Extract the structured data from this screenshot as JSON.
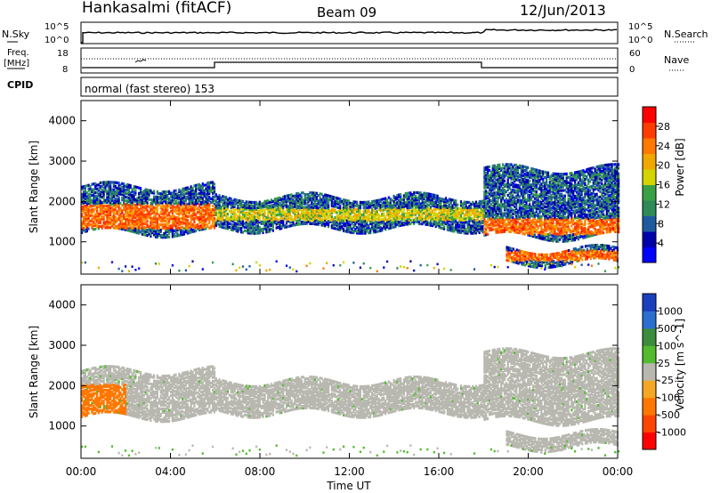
{
  "header": {
    "site": "Hankasalmi (fitACF)",
    "beam": "Beam 09",
    "date": "12/Jun/2013"
  },
  "noise_panel": {
    "left_label": "N.Sky",
    "right_label": "N.Search",
    "left_ticks": [
      "10^5",
      "10^0"
    ],
    "right_ticks": [
      "10^5",
      "10^0"
    ]
  },
  "freq_panel": {
    "left_label_line1": "Freq.",
    "left_label_line2": "[MHz]",
    "left_ticks": [
      "18",
      "8"
    ],
    "right_label": "Nave",
    "right_ticks": [
      "60",
      "0"
    ]
  },
  "cpid_panel": {
    "label": "CPID",
    "mode_text": "normal (fast stereo) 153"
  },
  "colors": {
    "power_scale": [
      "#0000ff",
      "#0000aa",
      "#1f5aa0",
      "#2e8b57",
      "#3aa046",
      "#d4d400",
      "#f0a800",
      "#ff7800",
      "#ff3c00",
      "#ff0000"
    ],
    "velocity_scale": [
      "#1a3fbf",
      "#2a6fd0",
      "#3c8c3c",
      "#52bb2e",
      "#b8b8b0",
      "#f5a623",
      "#ff7700",
      "#ff4400",
      "#ff0000"
    ],
    "ground_scatter": "#b8b8b0"
  },
  "chart_data": [
    {
      "type": "heatmap",
      "panel": "power",
      "ylabel": "Slant Range [km]",
      "yticks": [
        "1000",
        "2000",
        "3000",
        "4000"
      ],
      "ylim": [
        200,
        4500
      ],
      "colorbar_label": "Power [dB]",
      "colorbar_ticks": [
        "4",
        "8",
        "12",
        "16",
        "20",
        "24",
        "28"
      ],
      "colorbar_range": [
        0,
        32
      ],
      "bands": [
        {
          "t0": 0,
          "t1": 6,
          "range_lo": 1200,
          "range_hi": 2350,
          "core": [
            1300,
            1900
          ],
          "peak_db": 29
        },
        {
          "t0": 6,
          "t1": 18,
          "range_lo": 1300,
          "range_hi": 2100,
          "core": [
            1500,
            1800
          ],
          "peak_db": 22
        },
        {
          "t0": 18,
          "t1": 24,
          "range_lo": 1100,
          "range_hi": 2800,
          "core": [
            1150,
            1550
          ],
          "peak_db": 29
        },
        {
          "t0": 19,
          "t1": 24,
          "range_lo": 450,
          "range_hi": 800,
          "core": [
            500,
            750
          ],
          "peak_db": 29
        }
      ]
    },
    {
      "type": "heatmap",
      "panel": "velocity",
      "ylabel": "Slant Range [km]",
      "yticks": [
        "1000",
        "2000",
        "3000",
        "4000"
      ],
      "ylim": [
        200,
        4500
      ],
      "colorbar_label": "Velocity [m s^-1]",
      "colorbar_ticks": [
        "1000",
        "500",
        "100",
        "25",
        "-25",
        "-100",
        "-500",
        "-1000"
      ],
      "dominant": "ground scatter (grey)",
      "bands": [
        {
          "t0": 0,
          "t1": 2,
          "range_lo": 1100,
          "range_hi": 2000,
          "velocity_ms": -500
        },
        {
          "t0": 0,
          "t1": 18,
          "range_lo": 1300,
          "range_hi": 2400,
          "velocity_ms": 0
        },
        {
          "t0": 18,
          "t1": 24,
          "range_lo": 1200,
          "range_hi": 2900,
          "velocity_ms": 0
        },
        {
          "t0": 19,
          "t1": 24,
          "range_lo": 450,
          "range_hi": 800,
          "velocity_ms": 0
        }
      ]
    }
  ],
  "x_axis": {
    "label": "Time UT",
    "ticks": [
      "00:00",
      "04:00",
      "08:00",
      "12:00",
      "16:00",
      "20:00",
      "00:00"
    ]
  }
}
